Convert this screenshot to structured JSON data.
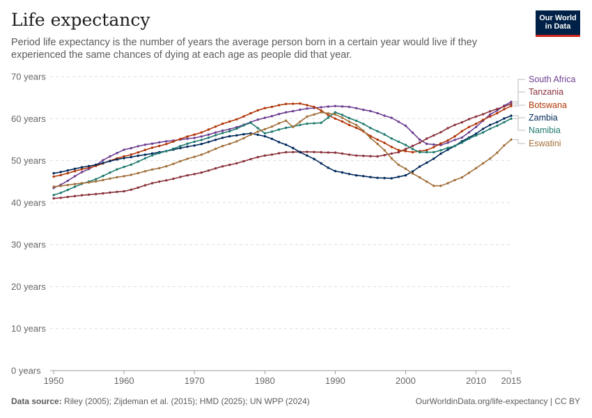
{
  "header": {
    "title": "Life expectancy",
    "subtitle": "Period life expectancy is the number of years the average person born in a certain year would live if they experienced the same chances of dying at each age as people did that year."
  },
  "logo": {
    "line1": "Our World",
    "line2": "in Data",
    "bg": "#002147",
    "stripe": "#ce261e"
  },
  "footer": {
    "source_label": "Data source:",
    "source_text": "Riley (2005); Zijdeman et al. (2015); HMD (2025); UN WPP (2024)",
    "link_text": "OurWorldinData.org/life-expectancy | CC BY"
  },
  "chart_data": {
    "type": "line",
    "title": "Life expectancy",
    "xlabel": "",
    "ylabel": "",
    "xlim": [
      1949.5,
      2015
    ],
    "ylim": [
      0,
      70
    ],
    "grid": true,
    "legend_position": "right",
    "x_ticks": [
      1950,
      1960,
      1970,
      1980,
      1990,
      2000,
      2010,
      2015
    ],
    "y_ticks": [
      {
        "value": 0,
        "label": "0 years"
      },
      {
        "value": 10,
        "label": "10 years"
      },
      {
        "value": 20,
        "label": "20 years"
      },
      {
        "value": 30,
        "label": "30 years"
      },
      {
        "value": 40,
        "label": "40 years"
      },
      {
        "value": 50,
        "label": "50 years"
      },
      {
        "value": 60,
        "label": "60 years"
      },
      {
        "value": 70,
        "label": "70 years"
      }
    ],
    "series": [
      {
        "name": "South Africa",
        "color": "#6d3e91",
        "points": [
          [
            1950,
            43.5
          ],
          [
            1955,
            48
          ],
          [
            1958,
            51
          ],
          [
            1960,
            52.6
          ],
          [
            1963,
            53.8
          ],
          [
            1966,
            54.6
          ],
          [
            1970,
            55.4
          ],
          [
            1975,
            57.5
          ],
          [
            1980,
            60.2
          ],
          [
            1983,
            61.5
          ],
          [
            1986,
            62.4
          ],
          [
            1990,
            63
          ],
          [
            1992,
            62.8
          ],
          [
            1995,
            61.8
          ],
          [
            1998,
            60.2
          ],
          [
            2000,
            58.3
          ],
          [
            2002,
            55
          ],
          [
            2003,
            54
          ],
          [
            2005,
            53.7
          ],
          [
            2008,
            55.5
          ],
          [
            2010,
            58
          ],
          [
            2012,
            61
          ],
          [
            2015,
            64
          ]
        ]
      },
      {
        "name": "Tanzania",
        "color": "#883039",
        "points": [
          [
            1950,
            41
          ],
          [
            1955,
            41.9
          ],
          [
            1960,
            42.7
          ],
          [
            1965,
            45
          ],
          [
            1970,
            46.8
          ],
          [
            1975,
            49
          ],
          [
            1980,
            51.2
          ],
          [
            1983,
            52
          ],
          [
            1986,
            52.1
          ],
          [
            1990,
            51.9
          ],
          [
            1993,
            51.2
          ],
          [
            1996,
            51
          ],
          [
            1999,
            52
          ],
          [
            2001,
            53.5
          ],
          [
            2004,
            56
          ],
          [
            2007,
            58.5
          ],
          [
            2010,
            60.5
          ],
          [
            2013,
            62.3
          ],
          [
            2015,
            63.5
          ]
        ]
      },
      {
        "name": "Botswana",
        "color": "#b13507",
        "points": [
          [
            1950,
            46.2
          ],
          [
            1955,
            48.3
          ],
          [
            1960,
            51
          ],
          [
            1965,
            53.5
          ],
          [
            1970,
            56.2
          ],
          [
            1975,
            59.3
          ],
          [
            1980,
            62.5
          ],
          [
            1983,
            63.5
          ],
          [
            1985,
            63.6
          ],
          [
            1987,
            62.8
          ],
          [
            1990,
            60
          ],
          [
            1993,
            57.8
          ],
          [
            1996,
            55
          ],
          [
            1999,
            52.5
          ],
          [
            2001,
            52
          ],
          [
            2003,
            52.5
          ],
          [
            2006,
            54.8
          ],
          [
            2009,
            58
          ],
          [
            2012,
            60.5
          ],
          [
            2015,
            63
          ]
        ]
      },
      {
        "name": "Zambia",
        "color": "#00295b",
        "points": [
          [
            1950,
            47
          ],
          [
            1955,
            48.7
          ],
          [
            1960,
            50.6
          ],
          [
            1963,
            51.4
          ],
          [
            1965,
            52
          ],
          [
            1970,
            53.6
          ],
          [
            1975,
            55.8
          ],
          [
            1978,
            56.5
          ],
          [
            1980,
            55.8
          ],
          [
            1983,
            53.8
          ],
          [
            1986,
            51.2
          ],
          [
            1990,
            47.5
          ],
          [
            1993,
            46.5
          ],
          [
            1996,
            45.9
          ],
          [
            1998,
            45.8
          ],
          [
            2000,
            46.5
          ],
          [
            2003,
            49.5
          ],
          [
            2006,
            52.6
          ],
          [
            2009,
            55.5
          ],
          [
            2012,
            58.5
          ],
          [
            2015,
            60.7
          ]
        ]
      },
      {
        "name": "Namibia",
        "color": "#1f7a6e",
        "points": [
          [
            1950,
            41.8
          ],
          [
            1955,
            45
          ],
          [
            1960,
            48.5
          ],
          [
            1965,
            51.8
          ],
          [
            1970,
            54.5
          ],
          [
            1975,
            57
          ],
          [
            1978,
            59
          ],
          [
            1980,
            56.5
          ],
          [
            1983,
            57.8
          ],
          [
            1986,
            58.8
          ],
          [
            1988,
            59
          ],
          [
            1990,
            61.5
          ],
          [
            1993,
            59.5
          ],
          [
            1996,
            57
          ],
          [
            1999,
            54.5
          ],
          [
            2002,
            52
          ],
          [
            2004,
            52
          ],
          [
            2007,
            53.5
          ],
          [
            2010,
            56
          ],
          [
            2013,
            58.3
          ],
          [
            2015,
            60
          ]
        ]
      },
      {
        "name": "Eswatini",
        "color": "#a2703a",
        "points": [
          [
            1950,
            43.8
          ],
          [
            1955,
            44.8
          ],
          [
            1960,
            46.3
          ],
          [
            1965,
            48.2
          ],
          [
            1970,
            50.9
          ],
          [
            1975,
            54
          ],
          [
            1980,
            57.5
          ],
          [
            1983,
            59.5
          ],
          [
            1984,
            58
          ],
          [
            1986,
            60.5
          ],
          [
            1988,
            61.5
          ],
          [
            1990,
            61
          ],
          [
            1993,
            58.5
          ],
          [
            1996,
            54
          ],
          [
            1999,
            49
          ],
          [
            2002,
            46
          ],
          [
            2004,
            44
          ],
          [
            2005,
            44
          ],
          [
            2008,
            46
          ],
          [
            2010,
            48.2
          ],
          [
            2012,
            50.5
          ],
          [
            2015,
            55
          ]
        ]
      }
    ]
  }
}
